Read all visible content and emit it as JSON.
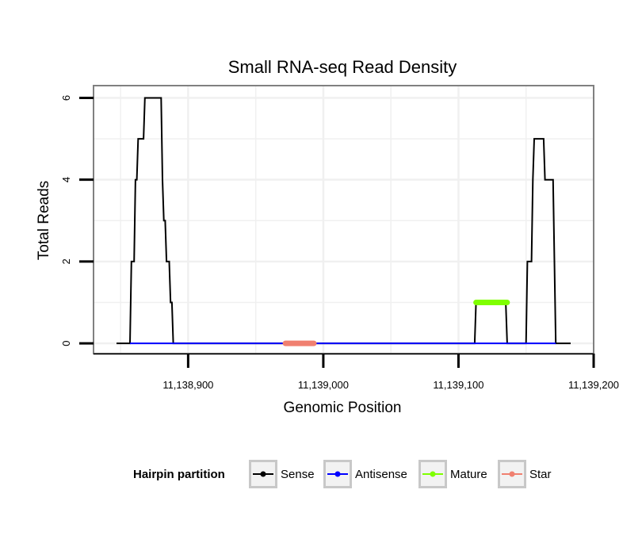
{
  "chart_data": {
    "type": "line",
    "title": "Small RNA-seq Read Density",
    "xlabel": "Genomic Position",
    "ylabel": "Total Reads",
    "xlim": [
      11138830,
      11139200
    ],
    "ylim": [
      -0.25,
      6.3
    ],
    "x_ticks": [
      11138900,
      11139000,
      11139100,
      11139200
    ],
    "x_tick_labels": [
      "11,138,900",
      "11,139,000",
      "11,139,100",
      "11,139,200"
    ],
    "y_ticks": [
      0,
      2,
      4,
      6
    ],
    "y_tick_labels": [
      "0",
      "2",
      "4",
      "6"
    ],
    "grid": true,
    "legend": {
      "title": "Hairpin partition",
      "position": "bottom",
      "entries": [
        "Sense",
        "Antisense",
        "Mature",
        "Star"
      ]
    },
    "series": [
      {
        "name": "Sense",
        "color": "#000000",
        "points": [
          [
            11138847,
            0
          ],
          [
            11138857,
            0
          ],
          [
            11138858,
            2
          ],
          [
            11138860,
            2
          ],
          [
            11138861,
            4
          ],
          [
            11138862,
            4
          ],
          [
            11138863,
            5
          ],
          [
            11138867,
            5
          ],
          [
            11138868,
            6
          ],
          [
            11138880,
            6
          ],
          [
            11138881,
            4
          ],
          [
            11138882,
            3
          ],
          [
            11138883,
            3
          ],
          [
            11138884,
            2
          ],
          [
            11138886,
            2
          ],
          [
            11138887,
            1
          ],
          [
            11138888,
            1
          ],
          [
            11138889,
            0
          ],
          [
            11139112,
            0
          ],
          [
            11139113,
            1
          ],
          [
            11139135,
            1
          ],
          [
            11139136,
            0
          ],
          [
            11139150,
            0
          ],
          [
            11139151,
            2
          ],
          [
            11139154,
            2
          ],
          [
            11139155,
            4
          ],
          [
            11139156,
            5
          ],
          [
            11139163,
            5
          ],
          [
            11139164,
            4
          ],
          [
            11139170,
            4
          ],
          [
            11139171,
            2
          ],
          [
            11139172,
            0
          ],
          [
            11139183,
            0
          ]
        ]
      },
      {
        "name": "Antisense",
        "color": "#0000ff",
        "points": [
          [
            11138857,
            0
          ],
          [
            11138889,
            0
          ],
          [
            11139113,
            0
          ],
          [
            11139135,
            0
          ],
          [
            11139151,
            0
          ],
          [
            11139172,
            0
          ]
        ]
      },
      {
        "name": "Mature",
        "color": "#7fff00",
        "range": [
          11139113,
          11139136
        ],
        "value": 1
      },
      {
        "name": "Star",
        "color": "#f08070",
        "range": [
          11138972,
          11138993
        ],
        "value": 0
      }
    ]
  }
}
